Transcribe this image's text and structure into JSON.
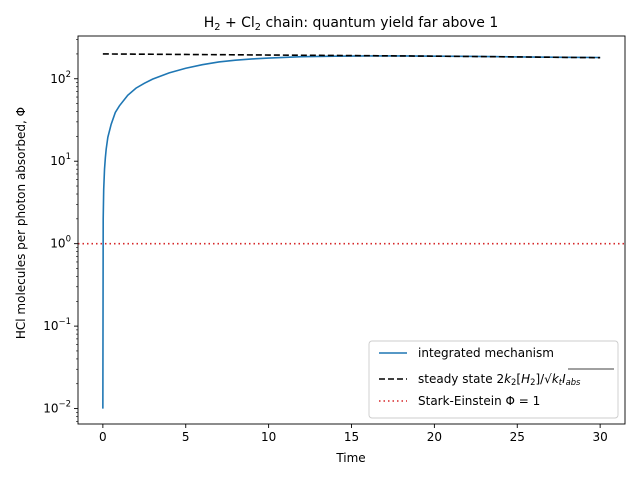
{
  "chart_data": {
    "type": "line",
    "title_parts": [
      {
        "text": "H",
        "kind": "normal"
      },
      {
        "text": "2",
        "kind": "sub"
      },
      {
        "text": " + Cl",
        "kind": "normal"
      },
      {
        "text": "2",
        "kind": "sub"
      },
      {
        "text": " chain: quantum yield far above 1",
        "kind": "normal"
      }
    ],
    "xlabel": "Time",
    "ylabel": "HCl molecules per photon absorbed, Φ",
    "xscale": "linear",
    "yscale": "log",
    "xlim": [
      -1.5,
      31.5
    ],
    "ylim": [
      0.0065,
      330
    ],
    "xticks": [
      0,
      5,
      10,
      15,
      20,
      25,
      30
    ],
    "yticks": [
      {
        "value": 0.01,
        "base": "10",
        "exp": "−2"
      },
      {
        "value": 0.1,
        "base": "10",
        "exp": "−1"
      },
      {
        "value": 1,
        "base": "10",
        "exp": "0"
      },
      {
        "value": 10,
        "base": "10",
        "exp": "1"
      },
      {
        "value": 100,
        "base": "10",
        "exp": "2"
      }
    ],
    "grid": false,
    "legend_position": "lower-right",
    "series": [
      {
        "name": "integrated mechanism",
        "style": "solid",
        "color": "#1f77b4",
        "x": [
          0,
          0.02,
          0.05,
          0.1,
          0.15,
          0.2,
          0.3,
          0.5,
          0.75,
          1,
          1.5,
          2,
          2.5,
          3,
          4,
          5,
          6,
          7,
          8,
          9,
          10,
          12,
          14,
          16,
          18,
          20,
          22,
          24,
          26,
          28,
          30
        ],
        "y": [
          0.01,
          2.0,
          4.5,
          8,
          11,
          14,
          19.5,
          28,
          39,
          47,
          63,
          77,
          88,
          99,
          118,
          134,
          148,
          160,
          168,
          174,
          178,
          185,
          188,
          189,
          189,
          188,
          187,
          185,
          183,
          182,
          181
        ]
      },
      {
        "name_parts": [
          {
            "text": "steady state 2",
            "kind": "normal"
          },
          {
            "text": "k",
            "kind": "italic"
          },
          {
            "text": "2",
            "kind": "sub"
          },
          {
            "text": "[",
            "kind": "normal"
          },
          {
            "text": "H",
            "kind": "italic"
          },
          {
            "text": "2",
            "kind": "sub"
          },
          {
            "text": "]/√",
            "kind": "normal"
          },
          {
            "text": "k",
            "kind": "italic-over"
          },
          {
            "text": "t",
            "kind": "sub-italic-over"
          },
          {
            "text": "I",
            "kind": "italic-over"
          },
          {
            "text": "abs",
            "kind": "sub-italic-over"
          }
        ],
        "style": "dashed",
        "color": "#000000",
        "x": [
          0,
          5,
          10,
          15,
          20,
          25,
          30
        ],
        "y": [
          200,
          197,
          194,
          191,
          188,
          184,
          180
        ]
      },
      {
        "name_parts": [
          {
            "text": "Stark-Einstein ",
            "kind": "normal"
          },
          {
            "text": "Φ = 1",
            "kind": "normal"
          }
        ],
        "style": "dotted",
        "color": "#d62728",
        "hline": 1
      }
    ]
  }
}
